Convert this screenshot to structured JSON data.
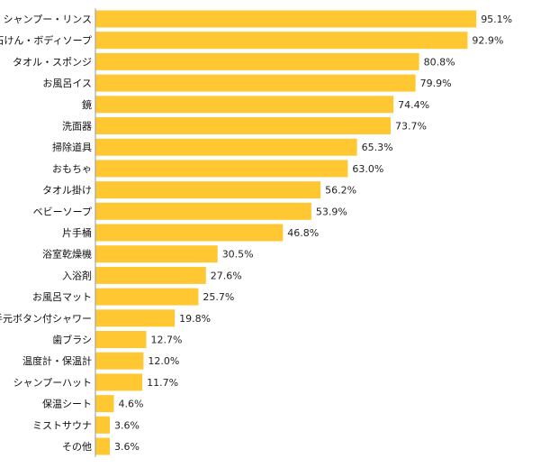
{
  "chart_data": {
    "type": "bar",
    "orientation": "horizontal",
    "title": "",
    "xlabel": "",
    "ylabel": "",
    "xlim": [
      0,
      100
    ],
    "grid": false,
    "value_suffix": "%",
    "bar_color": "#FFC832",
    "categories": [
      "シャンプー・リンス",
      "石けん・ボディソープ",
      "タオル・スポンジ",
      "お風呂イス",
      "鏡",
      "洗面器",
      "掃除道具",
      "おもちゃ",
      "タオル掛け",
      "ベビーソープ",
      "片手桶",
      "浴室乾燥機",
      "入浴剤",
      "お風呂マット",
      "手元ボタン付シャワー",
      "歯ブラシ",
      "温度計・保温計",
      "シャンプーハット",
      "保温シート",
      "ミストサウナ",
      "その他"
    ],
    "values": [
      95.1,
      92.9,
      80.8,
      79.9,
      74.4,
      73.7,
      65.3,
      63.0,
      56.2,
      53.9,
      46.8,
      30.5,
      27.6,
      25.7,
      19.8,
      12.7,
      12.0,
      11.7,
      4.6,
      3.6,
      3.6
    ],
    "value_labels": [
      "95.1%",
      "92.9%",
      "80.8%",
      "79.9%",
      "74.4%",
      "73.7%",
      "65.3%",
      "63.0%",
      "56.2%",
      "53.9%",
      "46.8%",
      "30.5%",
      "27.6%",
      "25.7%",
      "19.8%",
      "12.7%",
      "12.0%",
      "11.7%",
      "4.6%",
      "3.6%",
      "3.6%"
    ]
  }
}
